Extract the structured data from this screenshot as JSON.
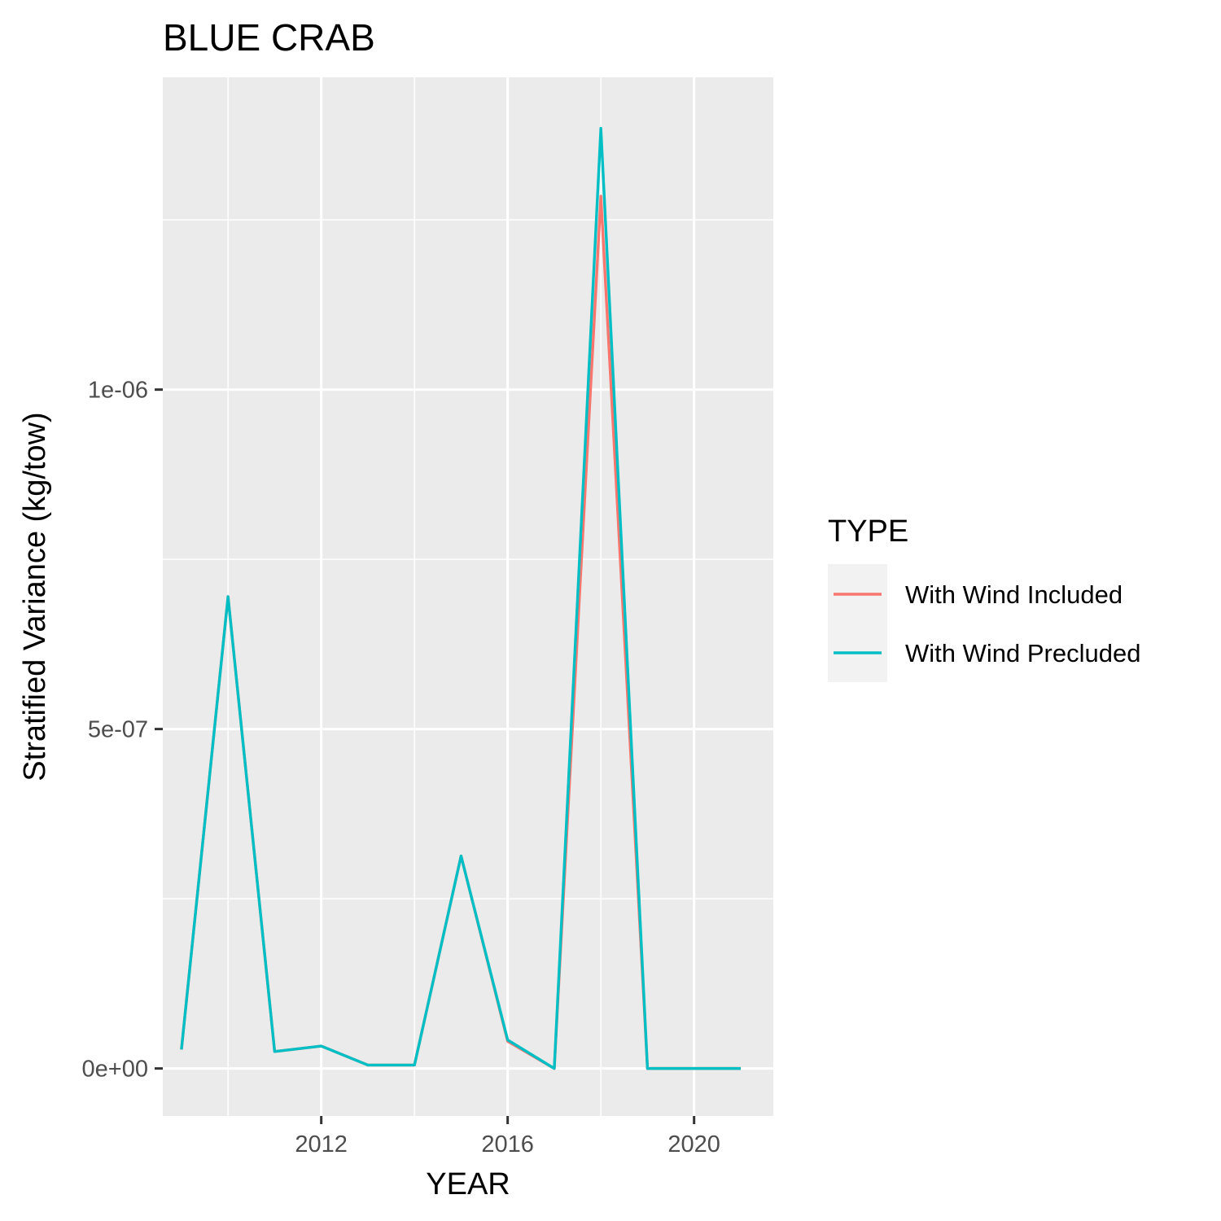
{
  "chart_data": {
    "type": "line",
    "title": "BLUE CRAB",
    "xlabel": "YEAR",
    "ylabel": "Stratified Variance (kg/tow)",
    "xlim": [
      2008.6,
      2021.7
    ],
    "ylim": [
      -7e-08,
      1.46e-06
    ],
    "x_ticks": [
      2012,
      2016,
      2020
    ],
    "x_tick_labels": [
      "2012",
      "2016",
      "2020"
    ],
    "y_ticks": [
      0,
      5e-07,
      1e-06
    ],
    "y_tick_labels": [
      "0e+00",
      "5e-07",
      "1e-06"
    ],
    "grid": true,
    "legend": {
      "title": "TYPE",
      "position": "right"
    },
    "x": [
      2009,
      2010,
      2011,
      2012,
      2013,
      2014,
      2015,
      2016,
      2017,
      2018,
      2019,
      2020,
      2021
    ],
    "series": [
      {
        "name": "With Wind Included",
        "color": "#F8766D",
        "values": [
          2.8e-08,
          6.95e-07,
          2.5e-08,
          3.3e-08,
          5e-09,
          5e-09,
          3.13e-07,
          4e-08,
          0,
          1.285e-06,
          0,
          0,
          0
        ]
      },
      {
        "name": "With Wind Precluded",
        "color": "#00BFC4",
        "values": [
          2.8e-08,
          6.95e-07,
          2.5e-08,
          3.3e-08,
          5e-09,
          5e-09,
          3.13e-07,
          4.2e-08,
          0,
          1.385e-06,
          0,
          0,
          0
        ]
      }
    ]
  }
}
